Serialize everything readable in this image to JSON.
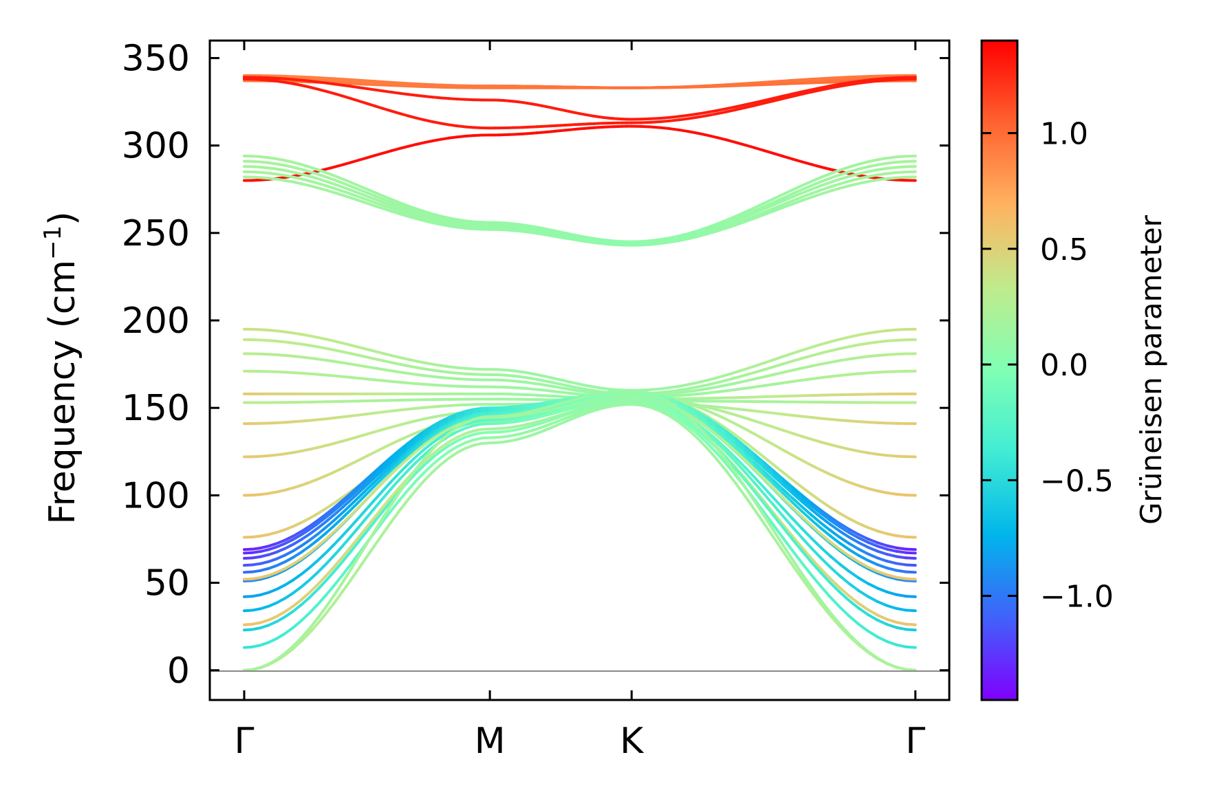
{
  "chart_data": {
    "type": "line",
    "ylabel": "Frequency (cm",
    "ylabel_sup": "−1",
    "ylabel_close": ")",
    "ylim": [
      -17,
      360
    ],
    "yticks": [
      0,
      50,
      100,
      150,
      200,
      250,
      300,
      350
    ],
    "ytick_labels": [
      "0",
      "50",
      "100",
      "150",
      "200",
      "250",
      "300",
      "350"
    ],
    "xticks": [
      0,
      1,
      1.577,
      2.732
    ],
    "xtick_labels": [
      "Γ",
      "M",
      "K",
      "Γ"
    ],
    "xlim": [
      -0.14,
      2.87
    ],
    "zero_line": true,
    "grid": false,
    "legend": "none",
    "colorbar": {
      "label": "Grüneisen parameter",
      "colormap": "rainbow",
      "range": [
        -1.45,
        1.4
      ],
      "ticks": [
        -1.0,
        -0.5,
        0.0,
        0.5,
        1.0
      ],
      "tick_labels": [
        "−1.0",
        "−0.5",
        "0.0",
        "0.5",
        "1.0"
      ]
    },
    "series": [
      {
        "gamma_values": [
          0.94,
          0.95,
          0.98,
          0.98
        ],
        "values": [
          337,
          333,
          333,
          337
        ]
      },
      {
        "gamma_values": [
          0.92,
          0.95,
          0.98,
          0.98
        ],
        "values": [
          338,
          333,
          333,
          338
        ]
      },
      {
        "gamma_values": [
          0.9,
          0.95,
          0.98,
          0.95
        ],
        "values": [
          339,
          334,
          333,
          339
        ]
      },
      {
        "gamma_values": [
          0.9,
          0.95,
          0.98,
          0.93
        ],
        "values": [
          340,
          334,
          333,
          340
        ]
      },
      {
        "gamma_values": [
          1.3,
          1.3,
          1.3,
          1.3
        ],
        "values": [
          339,
          326,
          315,
          339
        ]
      },
      {
        "gamma_values": [
          1.3,
          1.3,
          1.3,
          1.3
        ],
        "values": [
          338,
          310,
          313,
          338
        ]
      },
      {
        "gamma_values": [
          1.35,
          1.35,
          1.35,
          1.35
        ],
        "values": [
          280,
          306,
          311,
          280
        ]
      },
      {
        "gamma_values": [
          0.2,
          0.1,
          0.05,
          0.2
        ],
        "values": [
          282,
          252,
          243,
          282
        ]
      },
      {
        "gamma_values": [
          0.2,
          0.1,
          0.05,
          0.2
        ],
        "values": [
          285,
          253,
          243,
          285
        ]
      },
      {
        "gamma_values": [
          0.2,
          0.1,
          0.05,
          0.2
        ],
        "values": [
          288,
          254,
          244,
          288
        ]
      },
      {
        "gamma_values": [
          0.2,
          0.1,
          0.05,
          0.2
        ],
        "values": [
          291,
          255,
          244,
          291
        ]
      },
      {
        "gamma_values": [
          0.2,
          0.1,
          0.05,
          0.2
        ],
        "values": [
          294,
          256,
          245,
          294
        ]
      },
      {
        "gamma_values": [
          0.4,
          0.15,
          0.1,
          0.4
        ],
        "values": [
          195,
          172,
          160,
          195
        ]
      },
      {
        "gamma_values": [
          0.35,
          0.15,
          0.1,
          0.35
        ],
        "values": [
          189,
          169,
          158,
          189
        ]
      },
      {
        "gamma_values": [
          0.3,
          0.15,
          0.1,
          0.3
        ],
        "values": [
          181,
          166,
          157,
          181
        ]
      },
      {
        "gamma_values": [
          0.3,
          0.15,
          0.1,
          0.3
        ],
        "values": [
          171,
          162,
          156,
          171
        ]
      },
      {
        "gamma_values": [
          0.55,
          0.15,
          0.1,
          0.55
        ],
        "values": [
          158,
          158,
          155,
          158
        ]
      },
      {
        "gamma_values": [
          0.3,
          0.15,
          0.1,
          0.3
        ],
        "values": [
          153,
          155,
          154,
          153
        ]
      },
      {
        "gamma_values": [
          0.55,
          0.15,
          0.1,
          0.55
        ],
        "values": [
          141,
          152,
          153,
          141
        ]
      },
      {
        "gamma_values": [
          0.55,
          0.15,
          0.1,
          0.55
        ],
        "values": [
          122,
          148,
          156,
          122
        ]
      },
      {
        "gamma_values": [
          0.6,
          0.15,
          0.1,
          0.6
        ],
        "values": [
          100,
          145,
          158,
          100
        ]
      },
      {
        "gamma_values": [
          0.6,
          0.15,
          0.1,
          0.6
        ],
        "values": [
          76,
          142,
          159,
          76
        ]
      },
      {
        "gamma_values": [
          -1.35,
          -0.4,
          0.1,
          -1.35
        ],
        "values": [
          69,
          150,
          159,
          69
        ]
      },
      {
        "gamma_values": [
          -1.3,
          -0.4,
          0.1,
          -1.3
        ],
        "values": [
          67,
          149,
          158,
          67
        ]
      },
      {
        "gamma_values": [
          -1.25,
          -0.4,
          0.1,
          -1.25
        ],
        "values": [
          64,
          148,
          158,
          64
        ]
      },
      {
        "gamma_values": [
          -1.15,
          -0.35,
          0.1,
          -1.15
        ],
        "values": [
          60,
          147,
          157,
          60
        ]
      },
      {
        "gamma_values": [
          -1.05,
          -0.3,
          0.1,
          -1.05
        ],
        "values": [
          56,
          146,
          157,
          56
        ]
      },
      {
        "gamma_values": [
          -0.95,
          -0.25,
          0.1,
          -0.95
        ],
        "values": [
          51,
          145,
          156,
          51
        ]
      },
      {
        "gamma_values": [
          0.6,
          0.2,
          0.1,
          0.6
        ],
        "values": [
          52,
          144,
          156,
          52
        ]
      },
      {
        "gamma_values": [
          -0.85,
          -0.2,
          0.1,
          -0.85
        ],
        "values": [
          42,
          143,
          155,
          42
        ]
      },
      {
        "gamma_values": [
          -0.75,
          -0.15,
          0.1,
          -0.75
        ],
        "values": [
          34,
          141,
          155,
          34
        ]
      },
      {
        "gamma_values": [
          0.6,
          0.2,
          0.1,
          0.6
        ],
        "values": [
          26,
          138,
          154,
          26
        ]
      },
      {
        "gamma_values": [
          -0.6,
          0.0,
          0.1,
          -0.6
        ],
        "values": [
          23,
          136,
          154,
          23
        ]
      },
      {
        "gamma_values": [
          -0.45,
          0.1,
          0.1,
          -0.45
        ],
        "values": [
          13,
          133,
          153,
          13
        ]
      },
      {
        "gamma_values": [
          0.3,
          0.15,
          0.1,
          0.3
        ],
        "values": [
          0,
          130,
          152,
          0
        ]
      },
      {
        "gamma_values": [
          0.2,
          0.15,
          0.1,
          0.2
        ],
        "values": [
          0,
          145,
          160,
          0
        ]
      }
    ]
  }
}
